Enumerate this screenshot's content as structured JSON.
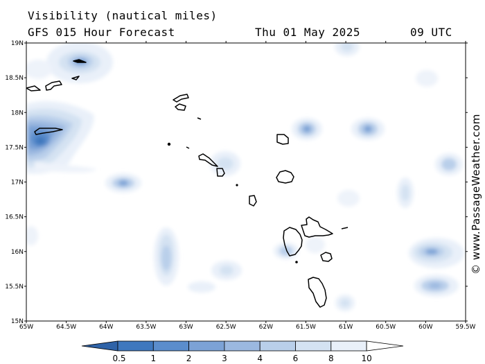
{
  "title_line1": "Visibility (nautical miles)",
  "title_line2": "GFS 015 Hour Forecast",
  "date": "Thu 01 May 2025",
  "time": "09 UTC",
  "credit": "© www.PassageWeather.com",
  "lat_labels": [
    "19N",
    "18.5N",
    "18N",
    "17.5N",
    "17N",
    "16.5N",
    "16N",
    "15.5N",
    "15N"
  ],
  "lon_labels": [
    "65W",
    "64.5W",
    "64W",
    "63.5W",
    "63W",
    "62.5W",
    "62W",
    "61.5W",
    "61W",
    "60.5W",
    "60W",
    "59.5W"
  ],
  "colorbar": {
    "ticks": [
      "0.5",
      "1",
      "2",
      "3",
      "4",
      "6",
      "8",
      "10"
    ],
    "colors": [
      "#3f78be",
      "#5b8dcc",
      "#7ca2d6",
      "#9bb8e0",
      "#b9cfea",
      "#d4e2f2",
      "#e9f0f9",
      "#ffffff"
    ]
  },
  "colors": {
    "frame": "#000000",
    "land_outline": "#000000"
  }
}
